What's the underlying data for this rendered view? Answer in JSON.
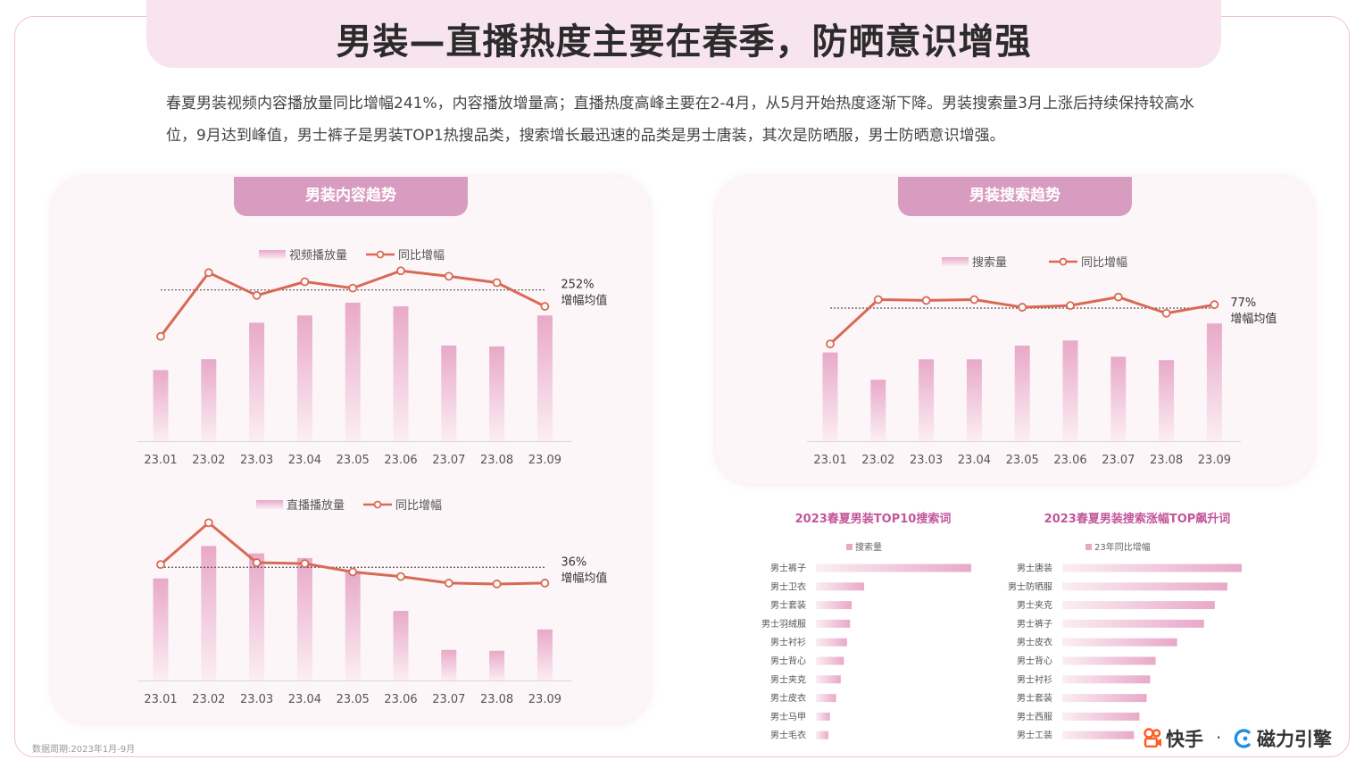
{
  "title": "男装—直播热度主要在春季，防晒意识增强",
  "description": "春夏男装视频内容播放量同比增幅241%，内容播放增量高；直播热度高峰主要在2-4月，从5月开始热度逐渐下降。男装搜索量3月上涨后持续保持较高水位，9月达到峰值，男士裤子是男装TOP1热搜品类，搜索增长最迅速的品类是男士唐装，其次是防晒服，男士防晒意识增强。",
  "left_panel": {
    "tab_label": "男装内容趋势"
  },
  "right_panel": {
    "tab_label": "男装搜索趋势"
  },
  "footnote": "数据周期:2023年1月-9月",
  "logos": {
    "kuaishou": "快手",
    "separator": "·",
    "cili": "磁力引擎"
  },
  "colors": {
    "bar_top": "#e8a9c8",
    "bar_bottom": "#fbeef3",
    "line": "#d86a55",
    "tab": "#d79cc0",
    "subtitle": "#c2569a"
  },
  "chart_data": [
    {
      "id": "video",
      "type": "bar+line",
      "categories": [
        "23.01",
        "23.02",
        "23.03",
        "23.04",
        "23.05",
        "23.06",
        "23.07",
        "23.08",
        "23.09"
      ],
      "series": [
        {
          "name": "视频播放量",
          "type": "bar",
          "values": [
            78,
            90,
            130,
            138,
            152,
            148,
            105,
            104,
            138
          ]
        },
        {
          "name": "同比增幅",
          "type": "line",
          "values": [
            115,
            185,
            160,
            175,
            168,
            187,
            181,
            174,
            148
          ]
        }
      ],
      "average": {
        "value_label": "252%",
        "label": "增幅均值",
        "level": 166
      },
      "ylim": [
        0,
        200
      ],
      "legend": "top-center"
    },
    {
      "id": "live",
      "type": "bar+line",
      "categories": [
        "23.01",
        "23.02",
        "23.03",
        "23.04",
        "23.05",
        "23.06",
        "23.07",
        "23.08",
        "23.09"
      ],
      "series": [
        {
          "name": "直播播放量",
          "type": "bar",
          "values": [
            110,
            145,
            137,
            132,
            118,
            75,
            33,
            32,
            55
          ]
        },
        {
          "name": "同比增幅",
          "type": "line",
          "values": [
            125,
            170,
            127,
            126,
            117,
            112,
            105,
            104,
            105
          ]
        }
      ],
      "average": {
        "value_label": "36%",
        "label": "增幅均值",
        "level": 122
      },
      "ylim": [
        0,
        180
      ],
      "legend": "top-center"
    },
    {
      "id": "search",
      "type": "bar+line",
      "categories": [
        "23.01",
        "23.02",
        "23.03",
        "23.04",
        "23.05",
        "23.06",
        "23.07",
        "23.08",
        "23.09"
      ],
      "series": [
        {
          "name": "搜索量",
          "type": "bar",
          "values": [
            104,
            72,
            96,
            96,
            112,
            118,
            99,
            95,
            138
          ]
        },
        {
          "name": "同比增幅",
          "type": "line",
          "values": [
            114,
            166,
            165,
            166,
            157,
            159,
            169,
            150,
            160
          ]
        }
      ],
      "average": {
        "value_label": "77%",
        "label": "增幅均值",
        "level": 156
      },
      "ylim": [
        0,
        200
      ],
      "legend": "top-center"
    },
    {
      "id": "top10",
      "type": "bar",
      "orientation": "horizontal",
      "title": "2023春夏男装TOP10搜索词",
      "legend_label": "搜索量",
      "categories": [
        "男士裤子",
        "男士卫衣",
        "男士套装",
        "男士羽绒服",
        "男士衬衫",
        "男士背心",
        "男士夹克",
        "男士皮衣",
        "男士马甲",
        "男士毛衣"
      ],
      "values": [
        100,
        31,
        23,
        22,
        20,
        18,
        16,
        13,
        9,
        8
      ]
    },
    {
      "id": "rising",
      "type": "bar",
      "orientation": "horizontal",
      "title": "2023春夏男装搜索涨幅TOP飙升词",
      "legend_label": "23年同比增幅",
      "categories": [
        "男士唐装",
        "男士防晒服",
        "男士夹克",
        "男士裤子",
        "男士皮衣",
        "男士背心",
        "男士衬衫",
        "男士套装",
        "男士西服",
        "男士工装"
      ],
      "values": [
        100,
        92,
        85,
        79,
        64,
        52,
        49,
        47,
        43,
        40
      ]
    }
  ]
}
